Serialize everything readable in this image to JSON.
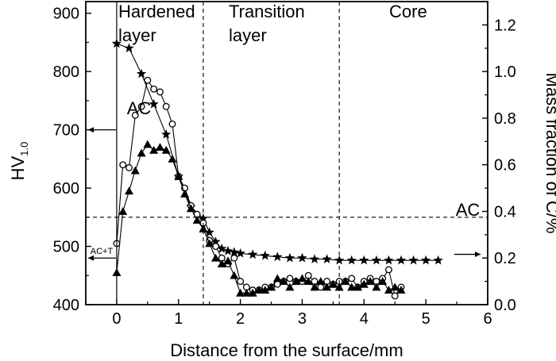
{
  "chart_data": {
    "type": "scatter",
    "xlabel": "Distance from the surface/mm",
    "ylabel": "HV",
    "ylabel_sub": "1.0",
    "y2label": "Mass fraction of C/%",
    "xlim": [
      -0.5,
      6
    ],
    "ylim": [
      400,
      920
    ],
    "y2lim": [
      0,
      1.3
    ],
    "grid": false,
    "x_ticks": [
      0,
      1,
      2,
      3,
      4,
      5,
      6
    ],
    "y_ticks": [
      400,
      500,
      600,
      700,
      800,
      900
    ],
    "y2_ticks": [
      0.0,
      0.2,
      0.4,
      0.6,
      0.8,
      1.0,
      1.2
    ],
    "x_tick_labels": [
      "0",
      "1",
      "2",
      "3",
      "4",
      "5",
      "6"
    ],
    "y_tick_labels": [
      "400",
      "500",
      "600",
      "700",
      "800",
      "900"
    ],
    "y2_tick_labels": [
      "0.0",
      "0.2",
      "0.4",
      "0.6",
      "0.8",
      "1.0",
      "1.2"
    ],
    "regions": [
      {
        "label_line1": "Hardened",
        "label_line2": "layer",
        "x_start": 0,
        "x_end": 1.4
      },
      {
        "label_line1": "Transition",
        "label_line2": "layer",
        "x_start": 1.4,
        "x_end": 3.6
      },
      {
        "label_line1": "Core",
        "label_line2": "",
        "x_start": 3.6,
        "x_end": 6
      }
    ],
    "vlines": [
      0,
      1.4,
      3.6
    ],
    "hline_y": 550,
    "annotations": [
      {
        "text": "AC",
        "arrow": "left",
        "y": 700
      },
      {
        "text": "AC+T",
        "arrow": "left",
        "y": 480
      },
      {
        "text": "AC",
        "arrow": "right",
        "y": 485
      }
    ],
    "series": [
      {
        "marker": "star",
        "axis": "right",
        "x": [
          0.0,
          0.2,
          0.4,
          0.6,
          0.8,
          1.0,
          1.2,
          1.4,
          1.5,
          1.6,
          1.7,
          1.8,
          1.9,
          2.0,
          2.2,
          2.4,
          2.6,
          2.8,
          3.0,
          3.2,
          3.4,
          3.6,
          3.8,
          4.0,
          4.2,
          4.4,
          4.6,
          4.8,
          5.0,
          5.2
        ],
        "y": [
          1.12,
          1.1,
          0.99,
          0.86,
          0.73,
          0.55,
          0.42,
          0.37,
          0.31,
          0.27,
          0.24,
          0.23,
          0.225,
          0.22,
          0.215,
          0.21,
          0.205,
          0.2,
          0.2,
          0.195,
          0.195,
          0.19,
          0.19,
          0.19,
          0.19,
          0.19,
          0.19,
          0.19,
          0.19,
          0.19
        ]
      },
      {
        "marker": "open-circle",
        "axis": "left",
        "x": [
          0.0,
          0.1,
          0.2,
          0.3,
          0.4,
          0.5,
          0.6,
          0.7,
          0.8,
          0.9,
          1.0,
          1.1,
          1.2,
          1.3,
          1.4,
          1.5,
          1.6,
          1.7,
          1.8,
          1.9,
          2.0,
          2.1,
          2.2,
          2.3,
          2.4,
          2.5,
          2.6,
          2.7,
          2.8,
          2.9,
          3.0,
          3.1,
          3.2,
          3.3,
          3.4,
          3.5,
          3.6,
          3.7,
          3.8,
          3.9,
          4.0,
          4.1,
          4.2,
          4.3,
          4.4,
          4.5,
          4.6
        ],
        "y": [
          505,
          640,
          635,
          725,
          740,
          785,
          770,
          765,
          740,
          710,
          620,
          600,
          570,
          555,
          540,
          510,
          500,
          480,
          470,
          480,
          440,
          430,
          425,
          425,
          430,
          430,
          435,
          440,
          445,
          440,
          440,
          450,
          440,
          430,
          440,
          435,
          440,
          440,
          445,
          430,
          440,
          445,
          440,
          445,
          460,
          415,
          430
        ]
      },
      {
        "marker": "filled-triangle",
        "axis": "left",
        "x": [
          0.0,
          0.1,
          0.2,
          0.3,
          0.4,
          0.5,
          0.6,
          0.7,
          0.8,
          0.9,
          1.0,
          1.1,
          1.2,
          1.3,
          1.4,
          1.5,
          1.6,
          1.7,
          1.8,
          1.9,
          2.0,
          2.1,
          2.2,
          2.3,
          2.4,
          2.5,
          2.6,
          2.7,
          2.8,
          2.9,
          3.0,
          3.1,
          3.2,
          3.3,
          3.4,
          3.5,
          3.6,
          3.7,
          3.8,
          3.9,
          4.0,
          4.1,
          4.2,
          4.3,
          4.4,
          4.5,
          4.6
        ],
        "y": [
          455,
          560,
          595,
          630,
          660,
          675,
          665,
          670,
          665,
          650,
          620,
          590,
          565,
          545,
          530,
          505,
          480,
          470,
          475,
          450,
          420,
          420,
          420,
          425,
          425,
          430,
          445,
          440,
          430,
          440,
          445,
          440,
          430,
          440,
          430,
          435,
          430,
          440,
          430,
          430,
          435,
          440,
          430,
          440,
          425,
          430,
          425
        ]
      }
    ]
  }
}
